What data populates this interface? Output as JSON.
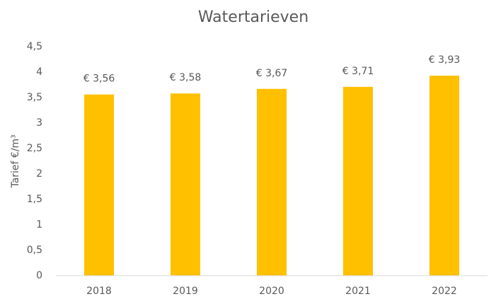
{
  "chart_data": {
    "type": "bar",
    "title": "Watertarieven",
    "y_label": "Tarief €/m³",
    "categories": [
      "2018",
      "2019",
      "2020",
      "2021",
      "2022"
    ],
    "values": [
      3.56,
      3.58,
      3.67,
      3.71,
      3.93
    ],
    "value_labels": [
      "€ 3,56",
      "€ 3,58",
      "€ 3,67",
      "€ 3,71",
      "€ 3,93"
    ],
    "color": "#ffc000",
    "ylim": [
      0,
      4.5
    ],
    "yticks": [
      0,
      {
        "value": 0.5,
        "label": "0,5"
      },
      1,
      {
        "value": 1.5,
        "label": "1,5"
      },
      2,
      {
        "value": 2.5,
        "label": "2,5"
      },
      3,
      {
        "value": 3.5,
        "label": "3,5"
      },
      4,
      {
        "value": 4.5,
        "label": "4,5"
      }
    ],
    "grid": false
  }
}
